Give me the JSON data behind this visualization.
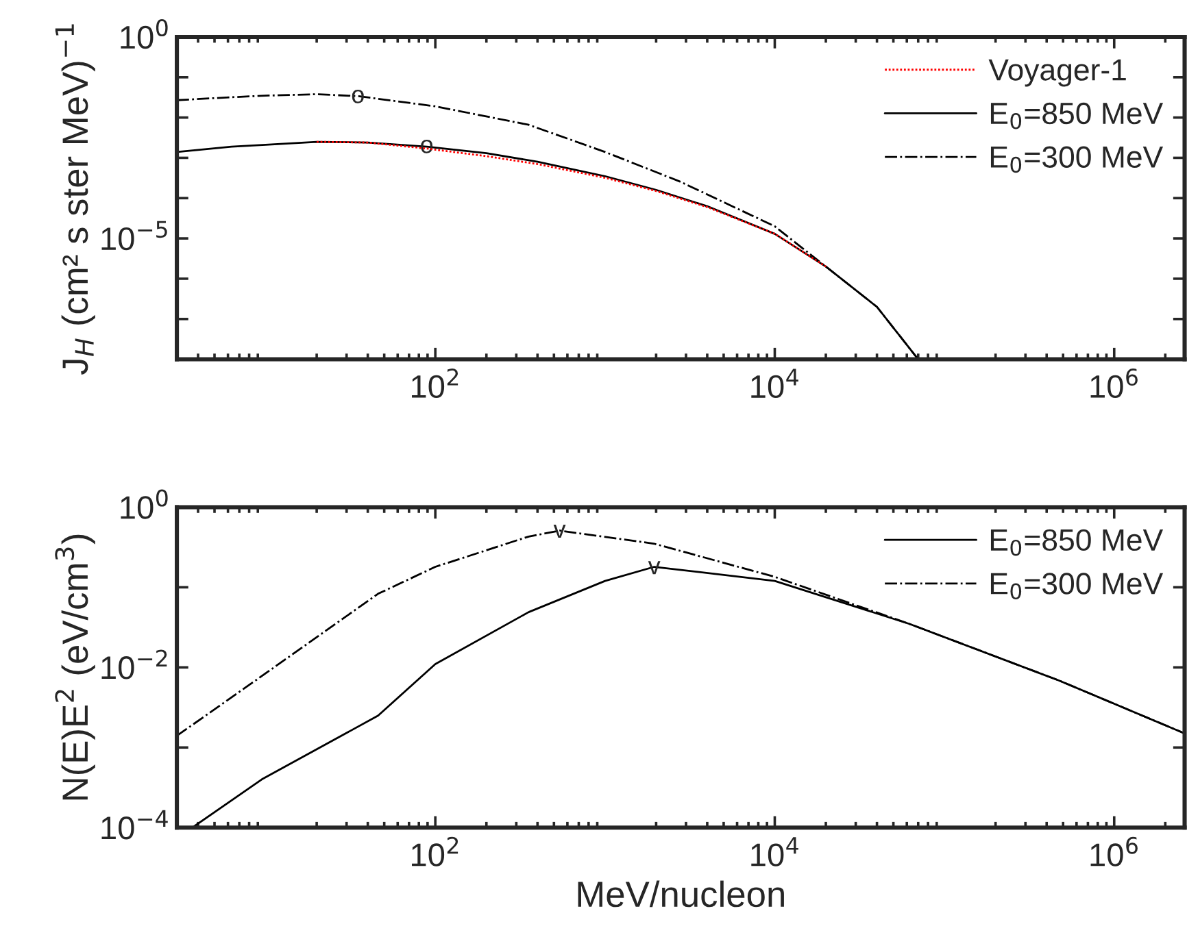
{
  "chart_data": [
    {
      "type": "line",
      "ylabel": "J$_{H}$ (cm² s ster MeV)$^{−1}$",
      "log": "xy",
      "legend": "top right",
      "grid": false,
      "xlim": [
        3,
        2600000
      ],
      "ylim": [
        1e-08,
        1
      ],
      "xticks": [
        {
          "value": 100,
          "label": "10$^{2}$"
        },
        {
          "value": 10000,
          "label": "10$^{4}$"
        },
        {
          "value": 1000000,
          "label": "10$^{6}$"
        }
      ],
      "yticks": [
        {
          "value": 1,
          "label": "10$^{0}$"
        },
        {
          "value": 0.1,
          "label": null
        },
        {
          "value": 0.01,
          "label": null
        },
        {
          "value": 0.001,
          "label": null
        },
        {
          "value": 0.0001,
          "label": null
        },
        {
          "value": 1e-05,
          "label": "10$^{−5}$"
        },
        {
          "value": 1e-06,
          "label": null
        },
        {
          "value": 1e-07,
          "label": null
        },
        {
          "value": 1e-08,
          "label": null
        }
      ],
      "series": [
        {
          "name": "Voyager-1",
          "color": "#ff0000",
          "line_style": "dotted",
          "x": [
            20,
            40,
            89,
            200,
            400,
            1000,
            2000,
            4000,
            10000,
            20000
          ],
          "values": [
            0.0025,
            0.0024,
            0.0017,
            0.0011,
            0.0007,
            0.00032,
            0.00015,
            6e-05,
            1.3e-05,
            2e-06
          ]
        },
        {
          "name": "E$_{0}$=850 MeV",
          "color": "#000000",
          "line_style": "solid",
          "x": [
            3,
            6.3,
            10,
            20,
            40,
            89,
            200,
            400,
            1000,
            2000,
            4000,
            10000,
            20000,
            40000,
            70000
          ],
          "values": [
            0.0014,
            0.0019,
            0.0021,
            0.0025,
            0.0024,
            0.0019,
            0.0013,
            0.0008,
            0.00035,
            0.00016,
            6.3e-05,
            1.3e-05,
            2e-06,
            2e-07,
            1e-08
          ]
        },
        {
          "name": "E$_{0}$=300 MeV",
          "color": "#000000",
          "line_style": "dashdot",
          "x": [
            3,
            6.3,
            10,
            20,
            35,
            100,
            355,
            1000,
            2750,
            10000,
            20000,
            40000,
            70000
          ],
          "values": [
            0.027,
            0.032,
            0.035,
            0.038,
            0.034,
            0.019,
            0.0066,
            0.0014,
            0.00026,
            2e-05,
            2e-06,
            2e-07,
            1e-08
          ]
        }
      ],
      "annotations": [
        {
          "text": "o",
          "x": 35,
          "y": 0.033
        },
        {
          "text": "o",
          "x": 89,
          "y": 0.0019
        }
      ]
    },
    {
      "type": "line",
      "xlabel": "MeV/nucleon",
      "ylabel": "N(E)E$^{2}$ (eV/cm$^{3}$)",
      "log": "xy",
      "legend": "top right",
      "grid": false,
      "xlim": [
        3,
        2600000
      ],
      "ylim": [
        0.0001,
        1
      ],
      "xticks": [
        {
          "value": 100,
          "label": "10$^{2}$"
        },
        {
          "value": 10000,
          "label": "10$^{4}$"
        },
        {
          "value": 1000000,
          "label": "10$^{6}$"
        }
      ],
      "yticks": [
        {
          "value": 1,
          "label": "10$^{0}$"
        },
        {
          "value": 0.1,
          "label": null
        },
        {
          "value": 0.01,
          "label": "10$^{−2}$"
        },
        {
          "value": 0.001,
          "label": null
        },
        {
          "value": 0.0001,
          "label": "10$^{−4}$"
        }
      ],
      "series": [
        {
          "name": "E$_{0}$=850 MeV",
          "color": "#000000",
          "line_style": "solid",
          "x": [
            3.7,
            9.5,
            46,
            100,
            355,
            1000,
            1950,
            10000,
            62000,
            470000,
            2600000
          ],
          "values": [
            0.0001,
            0.0004,
            0.0025,
            0.011,
            0.049,
            0.12,
            0.18,
            0.12,
            0.035,
            0.0069,
            0.0015
          ]
        },
        {
          "name": "E$_{0}$=300 MeV",
          "color": "#000000",
          "line_style": "dashdot",
          "x": [
            3,
            9.5,
            46,
            100,
            355,
            540,
            1950,
            10000,
            62000,
            470000,
            2600000
          ],
          "values": [
            0.0014,
            0.0078,
            0.083,
            0.18,
            0.43,
            0.51,
            0.35,
            0.135,
            0.035,
            0.0069,
            0.0015
          ]
        }
      ],
      "annotations": [
        {
          "text": "v",
          "x": 540,
          "y": 0.5
        },
        {
          "text": "v",
          "x": 1950,
          "y": 0.175
        }
      ]
    }
  ]
}
